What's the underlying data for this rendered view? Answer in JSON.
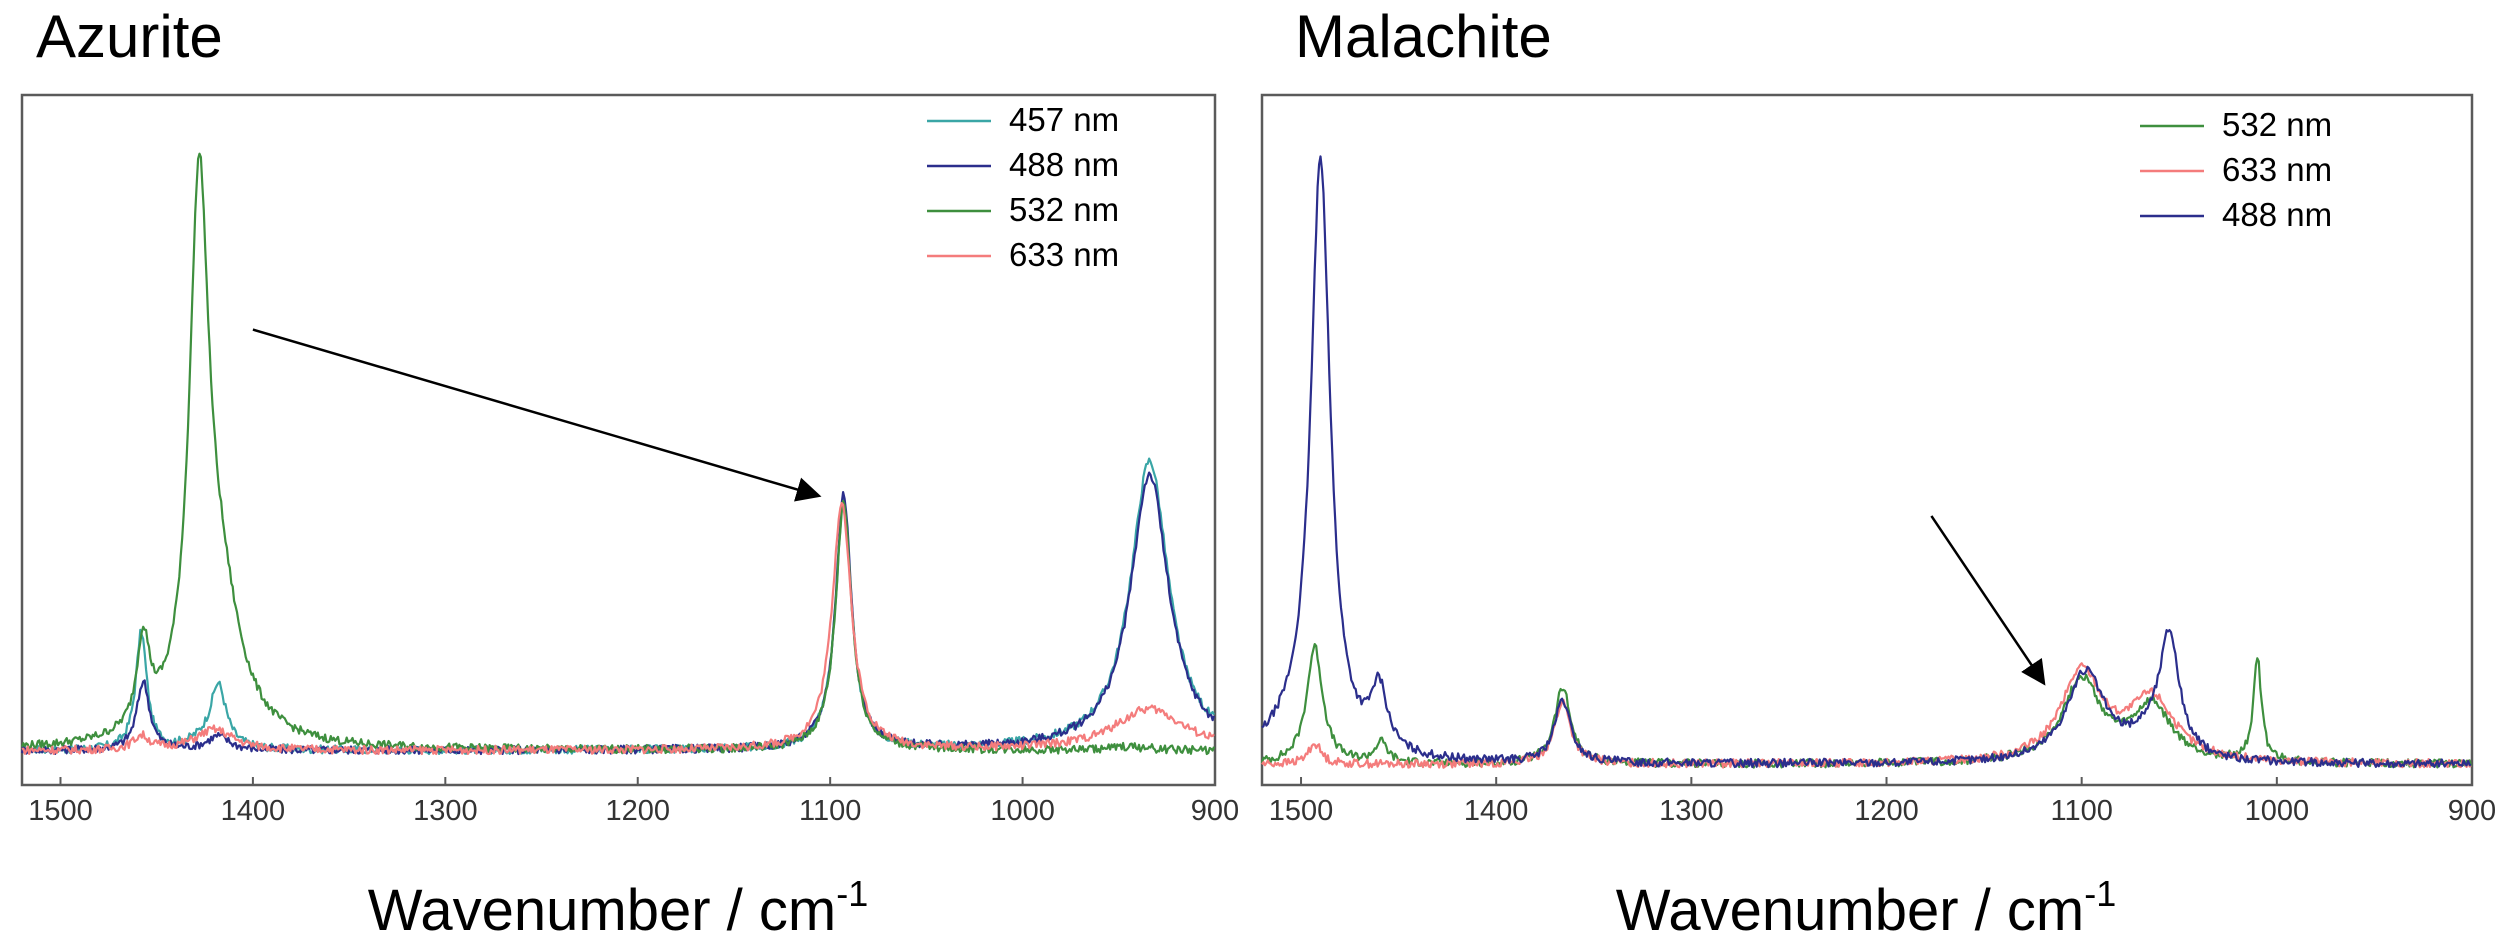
{
  "chart_data": [
    {
      "type": "line",
      "title": "Azurite",
      "xlabel": "Wavenumber / cm",
      "xlabel_sup": "-1",
      "xlim": [
        1520,
        900
      ],
      "x_reversed": true,
      "ylim": [
        0,
        1
      ],
      "y_ticks_shown": false,
      "xticks": [
        1500,
        1400,
        1300,
        1200,
        1100,
        1000,
        900
      ],
      "grid": false,
      "legend_position": "top-right",
      "series": [
        {
          "name": "457 nm",
          "color": "#3aa6a6",
          "baseline": 0.05,
          "tail_slope": 0.0,
          "peaks": [
            [
              1458,
              0.17,
              3.5
            ],
            [
              1418,
              0.09,
              5
            ],
            [
              1426,
              0.01,
              10
            ],
            [
              1093,
              0.36,
              5
            ],
            [
              934,
              0.42,
              12
            ]
          ]
        },
        {
          "name": "488 nm",
          "color": "#2b2e8c",
          "baseline": 0.05,
          "tail_slope": 0.0,
          "peaks": [
            [
              1457,
              0.1,
              4
            ],
            [
              1418,
              0.02,
              7
            ],
            [
              1093,
              0.37,
              5
            ],
            [
              934,
              0.4,
              12
            ]
          ]
        },
        {
          "name": "532 nm",
          "color": "#3e8f3e",
          "baseline": 0.05,
          "tail_slope": 0.0,
          "peaks": [
            [
              1457,
              0.13,
              4
            ],
            [
              1428,
              0.73,
              6
            ],
            [
              1418,
              0.2,
              14
            ],
            [
              1093,
              0.36,
              5
            ],
            [
              945,
              0.005,
              12
            ]
          ]
        },
        {
          "name": "633 nm",
          "color": "#f47c7c",
          "baseline": 0.05,
          "tail_slope": 0.0,
          "peaks": [
            [
              1458,
              0.02,
              5
            ],
            [
              1420,
              0.03,
              12
            ],
            [
              1094,
              0.36,
              6
            ],
            [
              934,
              0.06,
              22
            ]
          ]
        }
      ],
      "annotations": [
        {
          "type": "arrow",
          "from": [
            1400,
            0.66
          ],
          "to": [
            1107,
            0.42
          ]
        }
      ]
    },
    {
      "type": "line",
      "title": "Malachite",
      "xlabel": "Wavenumber / cm",
      "xlabel_sup": "-1",
      "xlim": [
        1520,
        900
      ],
      "x_reversed": true,
      "ylim": [
        0,
        1
      ],
      "y_ticks_shown": false,
      "xticks": [
        1500,
        1400,
        1300,
        1200,
        1100,
        1000,
        900
      ],
      "grid": false,
      "legend_position": "top-right",
      "series": [
        {
          "name": "532 nm",
          "color": "#3e8f3e",
          "baseline": 0.03,
          "tail_slope": 0.0,
          "peaks": [
            [
              1493,
              0.17,
              5
            ],
            [
              1459,
              0.03,
              4
            ],
            [
              1366,
              0.11,
              5
            ],
            [
              1100,
              0.12,
              12
            ],
            [
              1064,
              0.08,
              12
            ],
            [
              1010,
              0.15,
              2.5
            ]
          ]
        },
        {
          "name": "633 nm",
          "color": "#f47c7c",
          "baseline": 0.03,
          "tail_slope": 0.0,
          "peaks": [
            [
              1493,
              0.03,
              4
            ],
            [
              1366,
              0.09,
              5
            ],
            [
              1100,
              0.13,
              13
            ],
            [
              1064,
              0.09,
              14
            ]
          ]
        },
        {
          "name": "488 nm",
          "color": "#2b2e8c",
          "baseline": 0.03,
          "tail_slope": 0.0,
          "peaks": [
            [
              1490,
              0.86,
              6
            ],
            [
              1505,
              0.03,
              18
            ],
            [
              1460,
              0.09,
              5
            ],
            [
              1366,
              0.09,
              5
            ],
            [
              1098,
              0.13,
              12
            ],
            [
              1055,
              0.17,
              6
            ],
            [
              1065,
              0.03,
              12
            ]
          ]
        }
      ],
      "annotations": [
        {
          "type": "arrow",
          "from": [
            1177,
            0.39
          ],
          "to": [
            1120,
            0.15
          ]
        }
      ]
    }
  ]
}
